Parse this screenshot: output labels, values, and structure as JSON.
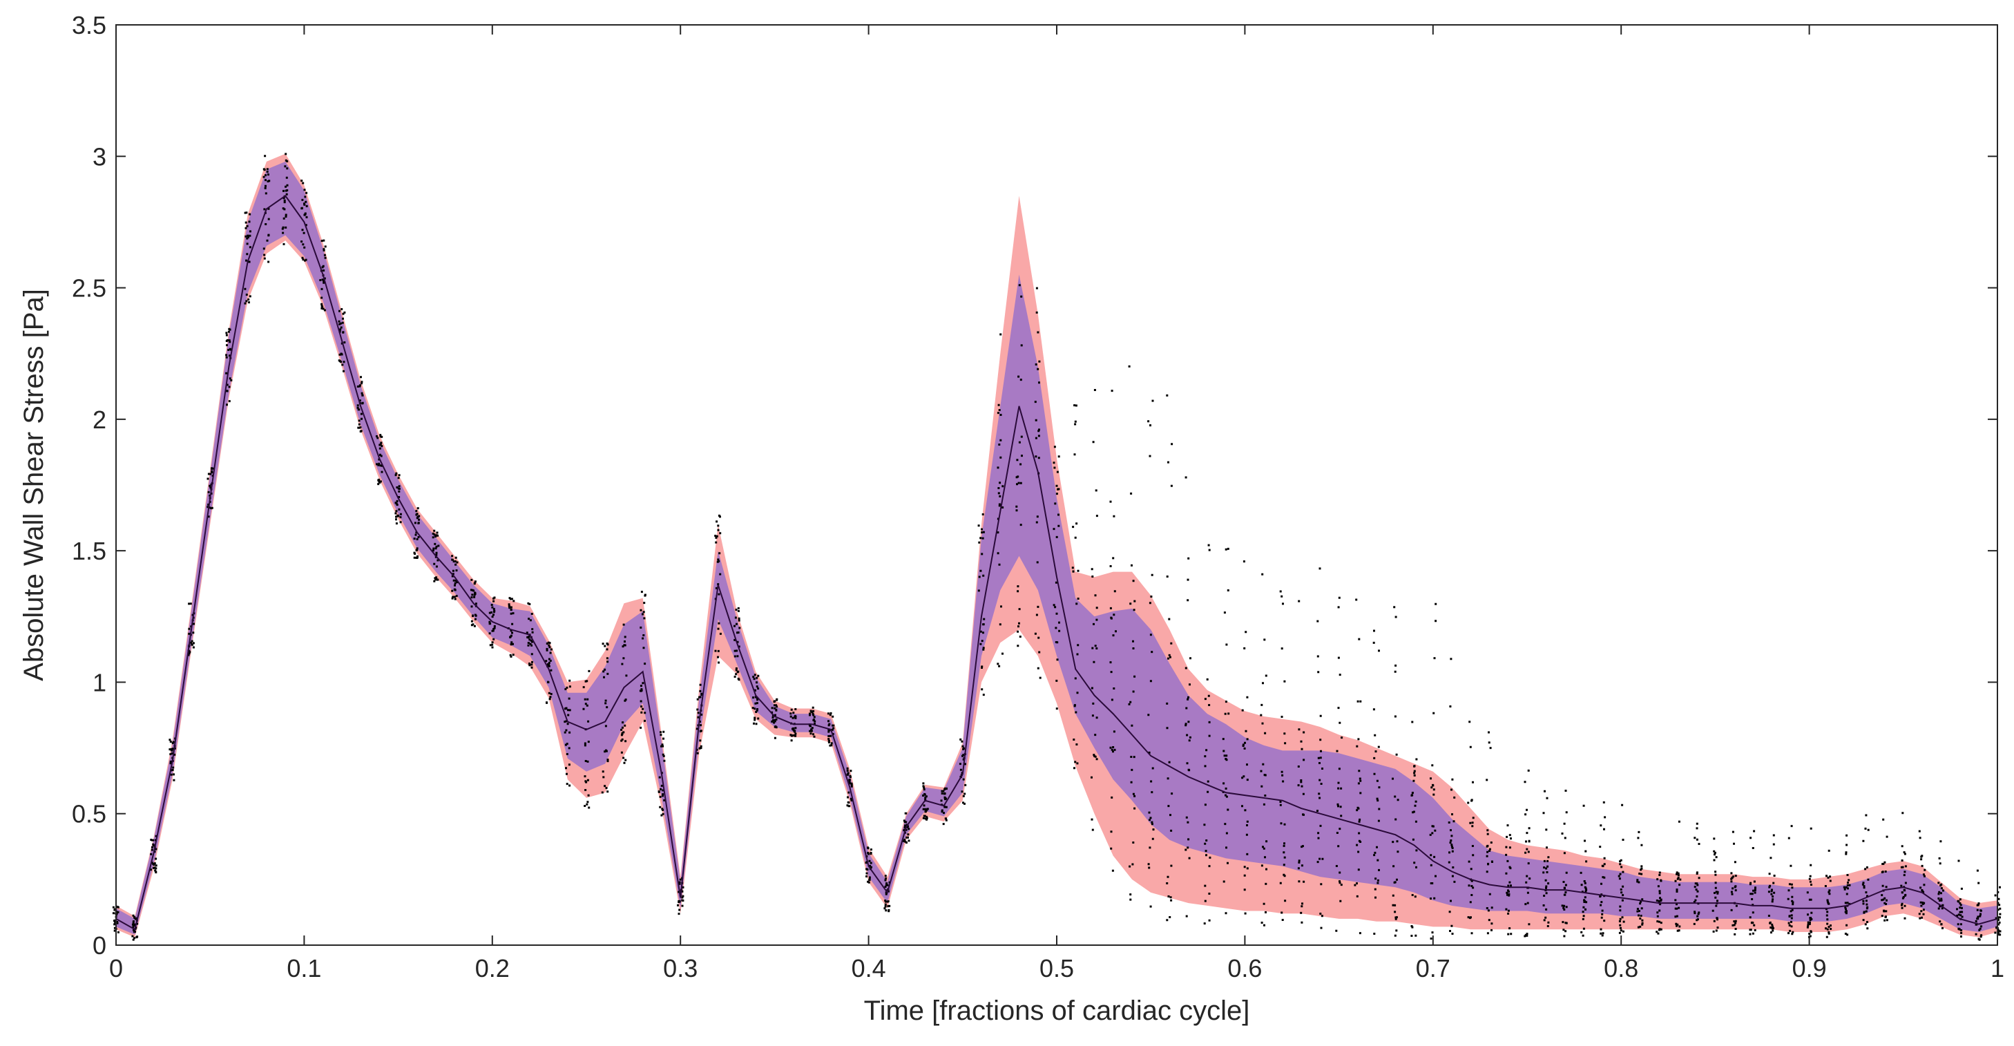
{
  "chart_data": {
    "type": "line",
    "title": "",
    "xlabel": "Time [fractions of cardiac cycle]",
    "ylabel": "Absolute Wall Shear Stress [Pa]",
    "xlim": [
      0,
      1
    ],
    "ylim": [
      0,
      3.5
    ],
    "xticks": [
      0,
      0.1,
      0.2,
      0.3,
      0.4,
      0.5,
      0.6,
      0.7,
      0.8,
      0.9,
      1
    ],
    "xtick_labels": [
      "0",
      "0.1",
      "0.2",
      "0.3",
      "0.4",
      "0.5",
      "0.6",
      "0.7",
      "0.8",
      "0.9",
      "1"
    ],
    "yticks": [
      0,
      0.5,
      1,
      1.5,
      2,
      2.5,
      3,
      3.5
    ],
    "ytick_labels": [
      "0",
      "0.5",
      "1",
      "1.5",
      "2",
      "2.5",
      "3",
      "3.5"
    ],
    "grid": false,
    "colors": {
      "outer_band": "#f9a8a8",
      "inner_band": "#a87ac4",
      "mean_line": "#2a0a3a",
      "samples": "#000000",
      "axis": "#262626"
    },
    "series": [
      {
        "name": "mean",
        "x": [
          0,
          0.01,
          0.02,
          0.03,
          0.04,
          0.05,
          0.06,
          0.07,
          0.08,
          0.09,
          0.1,
          0.11,
          0.12,
          0.13,
          0.14,
          0.15,
          0.16,
          0.17,
          0.18,
          0.19,
          0.2,
          0.21,
          0.22,
          0.23,
          0.24,
          0.25,
          0.26,
          0.27,
          0.28,
          0.29,
          0.3,
          0.31,
          0.32,
          0.33,
          0.34,
          0.35,
          0.36,
          0.37,
          0.38,
          0.39,
          0.4,
          0.41,
          0.42,
          0.43,
          0.44,
          0.45,
          0.46,
          0.47,
          0.48,
          0.49,
          0.5,
          0.51,
          0.52,
          0.53,
          0.54,
          0.55,
          0.56,
          0.57,
          0.58,
          0.59,
          0.6,
          0.61,
          0.62,
          0.63,
          0.64,
          0.65,
          0.66,
          0.67,
          0.68,
          0.69,
          0.7,
          0.71,
          0.72,
          0.73,
          0.74,
          0.75,
          0.76,
          0.77,
          0.78,
          0.79,
          0.8,
          0.81,
          0.82,
          0.83,
          0.84,
          0.85,
          0.86,
          0.87,
          0.88,
          0.89,
          0.9,
          0.91,
          0.92,
          0.93,
          0.94,
          0.95,
          0.96,
          0.97,
          0.98,
          0.99,
          1.0
        ],
        "y": [
          0.1,
          0.06,
          0.35,
          0.7,
          1.2,
          1.7,
          2.2,
          2.6,
          2.8,
          2.85,
          2.75,
          2.55,
          2.3,
          2.05,
          1.85,
          1.7,
          1.57,
          1.48,
          1.4,
          1.3,
          1.23,
          1.2,
          1.18,
          1.05,
          0.85,
          0.82,
          0.85,
          0.98,
          1.04,
          0.65,
          0.18,
          0.85,
          1.37,
          1.15,
          0.95,
          0.87,
          0.84,
          0.84,
          0.82,
          0.6,
          0.3,
          0.2,
          0.45,
          0.55,
          0.53,
          0.65,
          1.25,
          1.65,
          2.05,
          1.8,
          1.4,
          1.05,
          0.95,
          0.88,
          0.8,
          0.72,
          0.68,
          0.64,
          0.61,
          0.58,
          0.57,
          0.56,
          0.55,
          0.52,
          0.5,
          0.48,
          0.46,
          0.44,
          0.42,
          0.38,
          0.32,
          0.28,
          0.25,
          0.23,
          0.22,
          0.22,
          0.21,
          0.21,
          0.2,
          0.19,
          0.18,
          0.17,
          0.16,
          0.16,
          0.16,
          0.16,
          0.16,
          0.15,
          0.15,
          0.14,
          0.14,
          0.14,
          0.15,
          0.18,
          0.21,
          0.22,
          0.2,
          0.15,
          0.1,
          0.08,
          0.1
        ]
      },
      {
        "name": "inner band upper",
        "y": [
          0.14,
          0.1,
          0.4,
          0.76,
          1.27,
          1.79,
          2.32,
          2.75,
          2.95,
          2.98,
          2.87,
          2.65,
          2.39,
          2.13,
          1.92,
          1.77,
          1.64,
          1.55,
          1.46,
          1.37,
          1.3,
          1.28,
          1.27,
          1.14,
          0.96,
          0.96,
          1.06,
          1.22,
          1.27,
          0.77,
          0.24,
          0.94,
          1.5,
          1.24,
          1.02,
          0.91,
          0.88,
          0.88,
          0.86,
          0.65,
          0.35,
          0.24,
          0.49,
          0.6,
          0.59,
          0.75,
          1.55,
          2.05,
          2.55,
          2.2,
          1.7,
          1.32,
          1.25,
          1.27,
          1.28,
          1.2,
          1.07,
          0.95,
          0.88,
          0.84,
          0.79,
          0.76,
          0.74,
          0.74,
          0.74,
          0.73,
          0.71,
          0.69,
          0.67,
          0.62,
          0.56,
          0.48,
          0.42,
          0.36,
          0.34,
          0.33,
          0.32,
          0.31,
          0.3,
          0.29,
          0.28,
          0.26,
          0.25,
          0.24,
          0.24,
          0.24,
          0.24,
          0.23,
          0.23,
          0.22,
          0.22,
          0.22,
          0.23,
          0.25,
          0.28,
          0.29,
          0.27,
          0.22,
          0.16,
          0.14,
          0.15
        ]
      },
      {
        "name": "inner band lower",
        "y": [
          0.07,
          0.04,
          0.31,
          0.65,
          1.14,
          1.62,
          2.1,
          2.48,
          2.66,
          2.7,
          2.62,
          2.45,
          2.22,
          1.98,
          1.79,
          1.64,
          1.51,
          1.42,
          1.34,
          1.25,
          1.17,
          1.14,
          1.1,
          0.98,
          0.71,
          0.66,
          0.69,
          0.84,
          0.92,
          0.56,
          0.14,
          0.78,
          1.24,
          1.07,
          0.89,
          0.83,
          0.81,
          0.81,
          0.79,
          0.56,
          0.26,
          0.16,
          0.42,
          0.51,
          0.49,
          0.58,
          1.1,
          1.35,
          1.48,
          1.35,
          1.1,
          0.88,
          0.75,
          0.63,
          0.55,
          0.46,
          0.4,
          0.37,
          0.35,
          0.33,
          0.32,
          0.31,
          0.3,
          0.28,
          0.26,
          0.25,
          0.24,
          0.23,
          0.22,
          0.2,
          0.17,
          0.15,
          0.14,
          0.13,
          0.13,
          0.13,
          0.12,
          0.12,
          0.12,
          0.12,
          0.11,
          0.11,
          0.1,
          0.1,
          0.1,
          0.1,
          0.1,
          0.1,
          0.1,
          0.09,
          0.09,
          0.09,
          0.1,
          0.12,
          0.15,
          0.16,
          0.14,
          0.1,
          0.06,
          0.05,
          0.07
        ]
      },
      {
        "name": "outer band upper",
        "y": [
          0.15,
          0.11,
          0.41,
          0.78,
          1.29,
          1.81,
          2.34,
          2.78,
          2.98,
          3.01,
          2.89,
          2.67,
          2.41,
          2.15,
          1.94,
          1.79,
          1.66,
          1.57,
          1.48,
          1.39,
          1.32,
          1.31,
          1.29,
          1.16,
          1.0,
          1.01,
          1.12,
          1.3,
          1.32,
          0.8,
          0.26,
          0.98,
          1.6,
          1.27,
          1.04,
          0.93,
          0.9,
          0.9,
          0.88,
          0.67,
          0.37,
          0.26,
          0.5,
          0.61,
          0.6,
          0.77,
          1.6,
          2.25,
          2.85,
          2.4,
          1.85,
          1.42,
          1.4,
          1.42,
          1.42,
          1.33,
          1.2,
          1.05,
          0.97,
          0.93,
          0.89,
          0.87,
          0.86,
          0.85,
          0.83,
          0.8,
          0.78,
          0.75,
          0.72,
          0.69,
          0.66,
          0.6,
          0.52,
          0.44,
          0.4,
          0.38,
          0.37,
          0.36,
          0.34,
          0.33,
          0.31,
          0.29,
          0.28,
          0.27,
          0.27,
          0.27,
          0.27,
          0.26,
          0.26,
          0.25,
          0.25,
          0.26,
          0.27,
          0.29,
          0.31,
          0.32,
          0.3,
          0.24,
          0.18,
          0.16,
          0.17
        ]
      },
      {
        "name": "outer band lower",
        "y": [
          0.06,
          0.03,
          0.29,
          0.63,
          1.12,
          1.6,
          2.08,
          2.45,
          2.63,
          2.68,
          2.6,
          2.43,
          2.2,
          1.96,
          1.77,
          1.62,
          1.49,
          1.4,
          1.32,
          1.23,
          1.15,
          1.11,
          1.06,
          0.94,
          0.63,
          0.56,
          0.58,
          0.72,
          0.85,
          0.52,
          0.12,
          0.73,
          1.1,
          1.03,
          0.86,
          0.8,
          0.79,
          0.79,
          0.77,
          0.54,
          0.24,
          0.14,
          0.4,
          0.49,
          0.47,
          0.55,
          1.0,
          1.15,
          1.2,
          1.1,
          0.92,
          0.68,
          0.5,
          0.34,
          0.25,
          0.2,
          0.18,
          0.16,
          0.15,
          0.14,
          0.13,
          0.13,
          0.12,
          0.12,
          0.11,
          0.1,
          0.1,
          0.09,
          0.09,
          0.08,
          0.07,
          0.07,
          0.06,
          0.06,
          0.06,
          0.06,
          0.06,
          0.06,
          0.06,
          0.06,
          0.06,
          0.06,
          0.06,
          0.06,
          0.06,
          0.06,
          0.06,
          0.06,
          0.06,
          0.05,
          0.05,
          0.05,
          0.06,
          0.08,
          0.11,
          0.12,
          0.1,
          0.07,
          0.04,
          0.03,
          0.05
        ]
      }
    ]
  }
}
